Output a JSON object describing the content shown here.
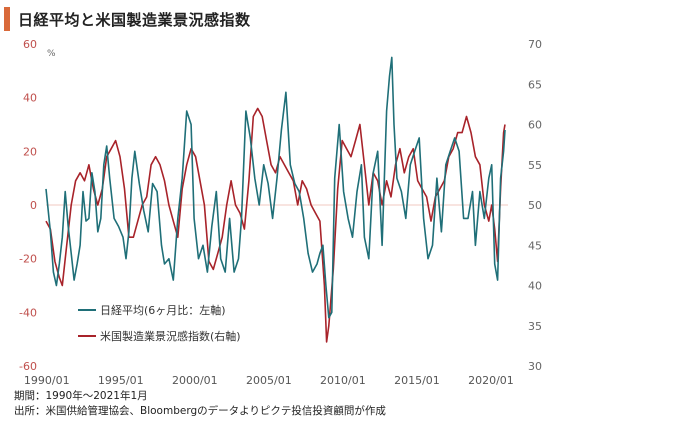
{
  "title": "日経平均と米国製造業景況感指数",
  "notes": {
    "period": "期間：1990年～2021年1月",
    "source": "出所：米国供給管理協会、Bloombergのデータよりピクテ投信投資顧問が作成"
  },
  "colors": {
    "accent": "#d9693a",
    "nikkei": "#1f6f78",
    "ism": "#a8232a",
    "zero_line": "#f2c9c0",
    "left_axis_text": "#c0504d"
  },
  "chart_data": {
    "type": "line",
    "x_start": "1990-01",
    "x_end": "2021-01",
    "xticks": [
      "1990/01",
      "1995/01",
      "2000/01",
      "2005/01",
      "2010/01",
      "2015/01",
      "2020/01"
    ],
    "xtick_years": [
      1990,
      1995,
      2000,
      2005,
      2010,
      2015,
      2020
    ],
    "left_axis": {
      "ylim": [
        -60,
        60
      ],
      "ticks": [
        60,
        40,
        20,
        0,
        -20,
        -40,
        -60
      ],
      "unit": "%"
    },
    "right_axis": {
      "ylim": [
        30,
        70
      ],
      "ticks": [
        70,
        65,
        60,
        55,
        50,
        45,
        40,
        35,
        30
      ]
    },
    "grid": false,
    "legend_position": "bottom-left",
    "series": [
      {
        "name": "日経平均(6ヶ月比：左軸)",
        "axis": "left",
        "color": "#1f6f78",
        "x": [
          1990.0,
          1990.3,
          1990.5,
          1990.7,
          1990.9,
          1991.1,
          1991.3,
          1991.5,
          1991.7,
          1991.9,
          1992.1,
          1992.3,
          1992.5,
          1992.7,
          1992.9,
          1993.1,
          1993.3,
          1993.5,
          1993.7,
          1993.9,
          1994.1,
          1994.3,
          1994.6,
          1994.9,
          1995.2,
          1995.4,
          1995.6,
          1995.8,
          1996.0,
          1996.3,
          1996.6,
          1996.9,
          1997.2,
          1997.5,
          1997.8,
          1998.0,
          1998.3,
          1998.6,
          1998.9,
          1999.2,
          1999.5,
          1999.8,
          2000.0,
          2000.3,
          2000.6,
          2000.9,
          2001.2,
          2001.5,
          2001.8,
          2002.1,
          2002.4,
          2002.7,
          2003.0,
          2003.2,
          2003.5,
          2003.8,
          2004.1,
          2004.4,
          2004.7,
          2005.0,
          2005.3,
          2005.6,
          2005.9,
          2006.2,
          2006.5,
          2006.8,
          2007.1,
          2007.4,
          2007.7,
          2008.0,
          2008.3,
          2008.5,
          2008.7,
          2008.9,
          2009.1,
          2009.3,
          2009.5,
          2009.8,
          2010.1,
          2010.4,
          2010.7,
          2011.0,
          2011.3,
          2011.5,
          2011.8,
          2012.1,
          2012.4,
          2012.7,
          2013.0,
          2013.2,
          2013.35,
          2013.5,
          2013.7,
          2014.0,
          2014.3,
          2014.6,
          2014.9,
          2015.2,
          2015.5,
          2015.8,
          2016.1,
          2016.4,
          2016.7,
          2017.0,
          2017.3,
          2017.6,
          2017.9,
          2018.2,
          2018.5,
          2018.8,
          2019.0,
          2019.3,
          2019.6,
          2019.9,
          2020.1,
          2020.3,
          2020.5,
          2020.7,
          2020.9,
          2021.0
        ],
        "values": [
          6,
          -10,
          -25,
          -30,
          -22,
          -12,
          5,
          -8,
          -18,
          -28,
          -22,
          -15,
          5,
          -6,
          -5,
          12,
          5,
          -10,
          -5,
          15,
          22,
          10,
          -5,
          -8,
          -12,
          -20,
          -10,
          10,
          20,
          8,
          -2,
          -10,
          8,
          5,
          -15,
          -22,
          -20,
          -28,
          -5,
          10,
          35,
          30,
          -5,
          -20,
          -15,
          -25,
          -8,
          5,
          -20,
          -25,
          -5,
          -25,
          -20,
          -5,
          35,
          25,
          10,
          0,
          15,
          8,
          -5,
          10,
          28,
          42,
          15,
          8,
          5,
          -5,
          -18,
          -25,
          -22,
          -18,
          -15,
          -30,
          -42,
          -40,
          10,
          30,
          5,
          -5,
          -12,
          5,
          15,
          -12,
          -20,
          12,
          20,
          -15,
          35,
          48,
          55,
          30,
          10,
          5,
          -5,
          15,
          20,
          25,
          -5,
          -20,
          -15,
          10,
          -10,
          15,
          20,
          25,
          20,
          -5,
          -5,
          5,
          -15,
          5,
          -5,
          10,
          15,
          -22,
          -28,
          10,
          20,
          28
        ],
        "display_values": [
          6,
          -10,
          -25,
          -30,
          -22,
          -12,
          5,
          -8,
          -18,
          -28,
          -22,
          -15,
          5,
          -6,
          -5,
          12,
          5,
          -10,
          -5,
          15,
          22,
          10,
          -5,
          -8,
          -12,
          -20,
          -10,
          10,
          20,
          8,
          -2,
          -10,
          8,
          5,
          -15,
          -22,
          -20,
          -28,
          -5,
          10,
          35,
          30,
          -5,
          -20,
          -15,
          -25,
          -8,
          5,
          -20,
          -25,
          -5,
          -25,
          -20,
          -5,
          35,
          25,
          10,
          0,
          15,
          8,
          -5,
          10,
          28,
          42,
          15,
          8,
          5,
          -5,
          -18,
          -25,
          -22,
          -18,
          -15,
          -30,
          -42,
          -40,
          10,
          30,
          5,
          -5,
          -12,
          5,
          15,
          -12,
          -20,
          12,
          20,
          -15,
          35,
          48,
          55,
          30,
          10,
          5,
          -5,
          15,
          20,
          25,
          -5,
          -20,
          -15,
          10,
          -10,
          15,
          20,
          25,
          20,
          -5,
          -5,
          5,
          -15,
          5,
          -5,
          10,
          15,
          -22,
          -28,
          10,
          20,
          28
        ]
      },
      {
        "name": "米国製造業景況感指数(右軸)",
        "axis": "right",
        "color": "#a8232a",
        "x": [
          1990.0,
          1990.3,
          1990.6,
          1990.9,
          1991.1,
          1991.4,
          1991.7,
          1992.0,
          1992.3,
          1992.6,
          1992.9,
          1993.2,
          1993.5,
          1993.8,
          1994.1,
          1994.4,
          1994.7,
          1995.0,
          1995.3,
          1995.6,
          1995.9,
          1996.2,
          1996.5,
          1996.8,
          1997.1,
          1997.4,
          1997.7,
          1998.0,
          1998.3,
          1998.6,
          1998.9,
          1999.2,
          1999.5,
          1999.8,
          2000.1,
          2000.4,
          2000.7,
          2001.0,
          2001.3,
          2001.6,
          2001.9,
          2002.2,
          2002.5,
          2002.8,
          2003.1,
          2003.4,
          2003.7,
          2004.0,
          2004.3,
          2004.6,
          2004.9,
          2005.2,
          2005.5,
          2005.8,
          2006.1,
          2006.4,
          2006.7,
          2007.0,
          2007.3,
          2007.6,
          2007.9,
          2008.2,
          2008.5,
          2008.8,
          2008.95,
          2009.1,
          2009.4,
          2009.7,
          2010.0,
          2010.3,
          2010.6,
          2010.9,
          2011.2,
          2011.5,
          2011.8,
          2012.1,
          2012.4,
          2012.7,
          2013.0,
          2013.3,
          2013.6,
          2013.9,
          2014.2,
          2014.5,
          2014.8,
          2015.1,
          2015.4,
          2015.7,
          2016.0,
          2016.3,
          2016.6,
          2016.9,
          2017.2,
          2017.5,
          2017.8,
          2018.1,
          2018.4,
          2018.7,
          2019.0,
          2019.3,
          2019.6,
          2019.9,
          2020.1,
          2020.3,
          2020.5,
          2020.7,
          2020.9,
          2021.0
        ],
        "values": [
          48,
          47,
          43,
          41,
          40,
          45,
          50,
          53,
          54,
          53,
          55,
          52,
          50,
          52,
          56,
          57,
          58,
          56,
          52,
          46,
          46,
          48,
          50,
          51,
          55,
          56,
          55,
          53,
          50,
          48,
          46,
          52,
          55,
          57,
          56,
          53,
          50,
          43,
          42,
          44,
          46,
          50,
          53,
          50,
          49,
          47,
          53,
          61,
          62,
          61,
          58,
          55,
          54,
          56,
          55,
          54,
          53,
          50,
          53,
          52,
          50,
          49,
          48,
          40,
          33,
          35,
          42,
          52,
          58,
          57,
          56,
          58,
          60,
          55,
          50,
          54,
          53,
          50,
          53,
          51,
          55,
          57,
          54,
          56,
          57,
          53,
          52,
          51,
          48,
          51,
          52,
          53,
          56,
          57,
          59,
          59,
          61,
          59,
          56,
          55,
          50,
          48,
          50,
          47,
          43,
          52,
          59,
          60
        ],
        "display_values": [
          48,
          47,
          43,
          41,
          40,
          45,
          50,
          53,
          54,
          53,
          55,
          52,
          50,
          52,
          56,
          57,
          58,
          56,
          52,
          46,
          46,
          48,
          50,
          51,
          55,
          56,
          55,
          53,
          50,
          48,
          46,
          52,
          55,
          57,
          56,
          53,
          50,
          43,
          42,
          44,
          46,
          50,
          53,
          50,
          49,
          47,
          53,
          61,
          62,
          61,
          58,
          55,
          54,
          56,
          55,
          54,
          53,
          50,
          53,
          52,
          50,
          49,
          48,
          40,
          33,
          35,
          42,
          52,
          58,
          57,
          56,
          58,
          60,
          55,
          50,
          54,
          53,
          50,
          53,
          51,
          55,
          57,
          54,
          56,
          57,
          53,
          52,
          51,
          48,
          51,
          52,
          53,
          56,
          57,
          59,
          59,
          61,
          59,
          56,
          55,
          50,
          48,
          50,
          47,
          43,
          52,
          59,
          60
        ]
      }
    ]
  }
}
